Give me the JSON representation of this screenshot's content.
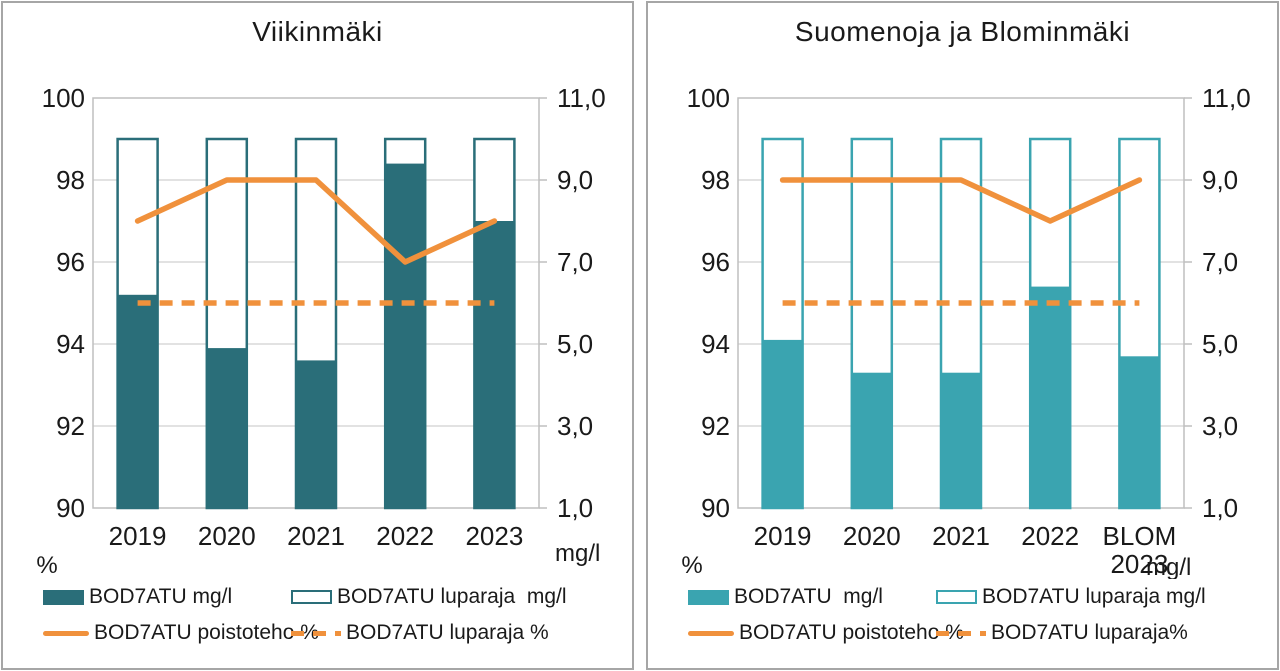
{
  "colors": {
    "teal_dark": "#2a6e79",
    "teal_light": "#3aa4b0",
    "orange": "#f0913c",
    "gridline": "#d9d9d9",
    "axis_line": "#bfbfbf",
    "panel_border": "#a6a6a6",
    "text": "#1a1a1a",
    "bar_fill_outline_series": "#ffffff"
  },
  "chart_data": [
    {
      "type": "bar",
      "subtype": "bar-line-combo",
      "title": "Viikinmäki",
      "categories": [
        "2019",
        "2020",
        "2021",
        "2022",
        "2023"
      ],
      "left_axis": {
        "unit": "%",
        "min": 90,
        "max": 100,
        "tick_step": 2,
        "tick_labels": [
          "100",
          "98",
          "96",
          "94",
          "92",
          "90"
        ]
      },
      "right_axis": {
        "unit": "mg/l",
        "min": 1.0,
        "max": 11.0,
        "tick_step": 2.0,
        "tick_labels": [
          "11,0",
          "9,0",
          "7,0",
          "5,0",
          "3,0",
          "1,0"
        ]
      },
      "grid": "horizontal",
      "legend_position": "bottom",
      "bar_color": "#2a6e79",
      "series": [
        {
          "name": "BOD7ATU mg/l",
          "type": "bar",
          "style": "filled",
          "axis": "right",
          "values": [
            6.2,
            4.9,
            4.6,
            9.4,
            8.0
          ]
        },
        {
          "name": "BOD7ATU luparaja  mg/l",
          "type": "bar",
          "style": "outline",
          "axis": "right",
          "values": [
            10.0,
            10.0,
            10.0,
            10.0,
            10.0
          ]
        },
        {
          "name": "BOD7ATU poistoteho %",
          "type": "line",
          "style": "solid",
          "axis": "left",
          "values": [
            97,
            98,
            98,
            96,
            97
          ]
        },
        {
          "name": "BOD7ATU luparaja %",
          "type": "line",
          "style": "dashed",
          "axis": "left",
          "values": [
            95,
            95,
            95,
            95,
            95
          ]
        }
      ]
    },
    {
      "type": "bar",
      "subtype": "bar-line-combo",
      "title": "Suomenoja ja Blominmäki",
      "categories": [
        "2019",
        "2020",
        "2021",
        "2022",
        "BLOM\n2023"
      ],
      "left_axis": {
        "unit": "%",
        "min": 90,
        "max": 100,
        "tick_step": 2,
        "tick_labels": [
          "100",
          "98",
          "96",
          "94",
          "92",
          "90"
        ]
      },
      "right_axis": {
        "unit": "mg/l",
        "min": 1.0,
        "max": 11.0,
        "tick_step": 2.0,
        "tick_labels": [
          "11,0",
          "9,0",
          "7,0",
          "5,0",
          "3,0",
          "1,0"
        ]
      },
      "grid": "horizontal",
      "legend_position": "bottom",
      "bar_color": "#3aa4b0",
      "series": [
        {
          "name": "BOD7ATU  mg/l",
          "type": "bar",
          "style": "filled",
          "axis": "right",
          "values": [
            5.1,
            4.3,
            4.3,
            6.4,
            4.7
          ]
        },
        {
          "name": "BOD7ATU luparaja mg/l",
          "type": "bar",
          "style": "outline",
          "axis": "right",
          "values": [
            10.0,
            10.0,
            10.0,
            10.0,
            10.0
          ]
        },
        {
          "name": "BOD7ATU poistoteho %",
          "type": "line",
          "style": "solid",
          "axis": "left",
          "values": [
            98,
            98,
            98,
            97,
            98
          ]
        },
        {
          "name": "BOD7ATU luparaja%",
          "type": "line",
          "style": "dashed",
          "axis": "left",
          "values": [
            95,
            95,
            95,
            95,
            95
          ]
        }
      ]
    }
  ]
}
